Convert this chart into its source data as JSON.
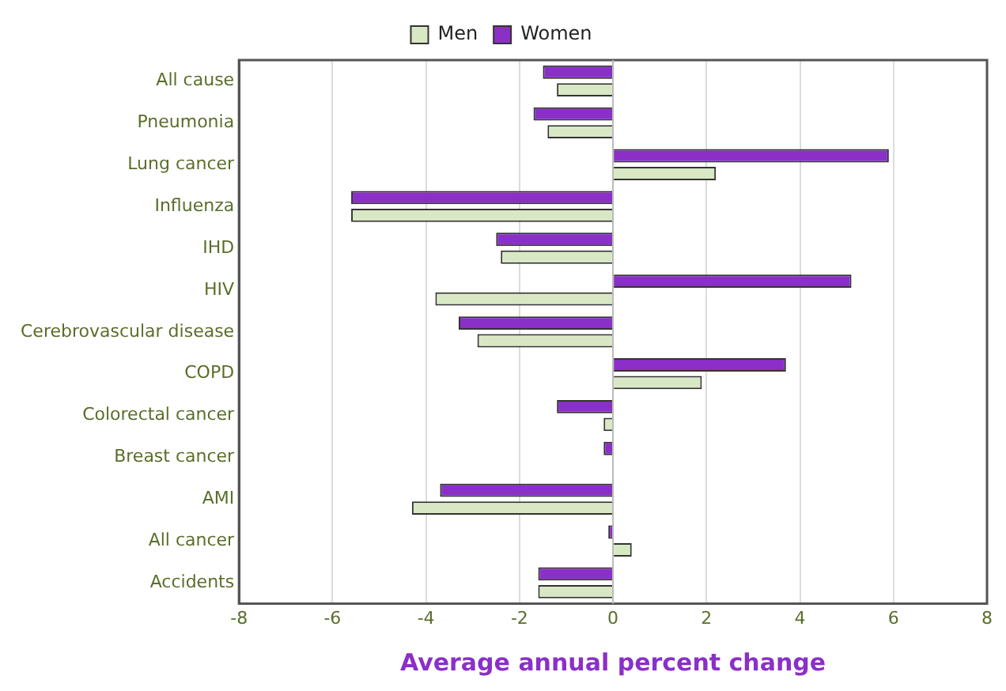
{
  "chart_data": {
    "type": "bar",
    "orientation": "horizontal",
    "xlabel": "Average annual percent change",
    "categories": [
      "All cause",
      "Pneumonia",
      "Lung cancer",
      "Influenza",
      "IHD",
      "HIV",
      "Cerebrovascular disease",
      "COPD",
      "Colorectal cancer",
      "Breast cancer",
      "AMI",
      "All cancer",
      "Accidents"
    ],
    "series": [
      {
        "name": "Men",
        "color": "#d9e8c4",
        "values": [
          -1.2,
          -1.4,
          2.2,
          -5.6,
          -2.4,
          -3.8,
          -2.9,
          1.9,
          -0.2,
          null,
          -4.3,
          0.4,
          -1.6
        ]
      },
      {
        "name": "Women",
        "color": "#8b2fc9",
        "values": [
          -1.5,
          -1.7,
          5.9,
          -5.6,
          -2.5,
          5.1,
          -3.3,
          3.7,
          -1.2,
          -0.2,
          -3.7,
          -0.1,
          -1.6
        ]
      }
    ],
    "xlim": [
      -8,
      8
    ],
    "xticks": [
      -8,
      -6,
      -4,
      -2,
      0,
      2,
      4,
      6,
      8
    ],
    "grid": "x",
    "legend": "top"
  }
}
